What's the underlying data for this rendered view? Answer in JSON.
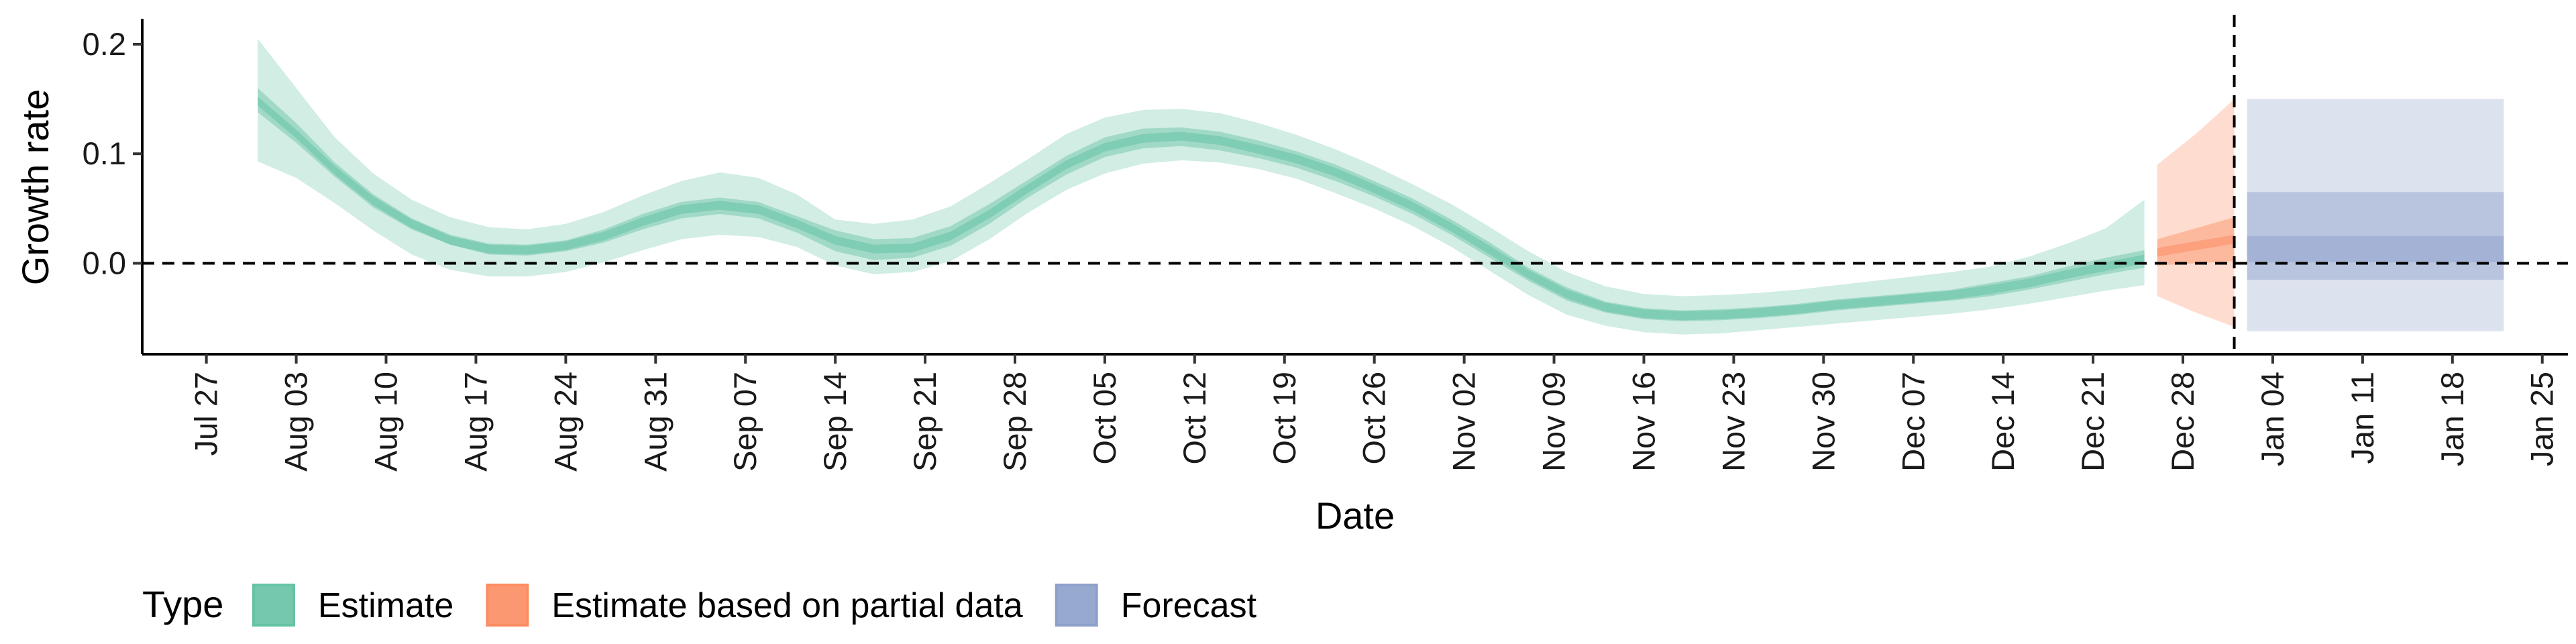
{
  "chart_data": {
    "type": "area",
    "xlabel": "Date",
    "ylabel": "Growth rate",
    "ylim": [
      -0.083,
      0.222
    ],
    "xlim": [
      "2020-07-22",
      "2021-01-27"
    ],
    "y_ticks": [
      0.0,
      0.1,
      0.2
    ],
    "y_tick_labels": [
      "0.0",
      "0.1",
      "0.2"
    ],
    "x_ticks": [
      "2020-07-27",
      "2020-08-03",
      "2020-08-10",
      "2020-08-17",
      "2020-08-24",
      "2020-08-31",
      "2020-09-07",
      "2020-09-14",
      "2020-09-21",
      "2020-09-28",
      "2020-10-05",
      "2020-10-12",
      "2020-10-19",
      "2020-10-26",
      "2020-11-02",
      "2020-11-09",
      "2020-11-16",
      "2020-11-23",
      "2020-11-30",
      "2020-12-07",
      "2020-12-14",
      "2020-12-21",
      "2020-12-28",
      "2021-01-04",
      "2021-01-11",
      "2021-01-18",
      "2021-01-25"
    ],
    "x_tick_labels": [
      "Jul 27",
      "Aug 03",
      "Aug 10",
      "Aug 17",
      "Aug 24",
      "Aug 31",
      "Sep 07",
      "Sep 14",
      "Sep 21",
      "Sep 28",
      "Oct 05",
      "Oct 12",
      "Oct 19",
      "Oct 26",
      "Nov 02",
      "Nov 09",
      "Nov 16",
      "Nov 23",
      "Nov 30",
      "Dec 07",
      "Dec 14",
      "Dec 21",
      "Dec 28",
      "Jan 04",
      "Jan 11",
      "Jan 18",
      "Jan 25"
    ],
    "reference_lines": {
      "horizontal_y": 0.0,
      "vertical_x": "2021-01-01"
    },
    "grid": false,
    "legend_position": "bottom",
    "legend_title": "Type",
    "series": [
      {
        "name": "Estimate",
        "color": "#66c2a5",
        "x": [
          "2020-07-31",
          "2020-08-03",
          "2020-08-06",
          "2020-08-09",
          "2020-08-12",
          "2020-08-15",
          "2020-08-18",
          "2020-08-21",
          "2020-08-24",
          "2020-08-27",
          "2020-08-30",
          "2020-09-02",
          "2020-09-05",
          "2020-09-08",
          "2020-09-11",
          "2020-09-14",
          "2020-09-17",
          "2020-09-20",
          "2020-09-23",
          "2020-09-26",
          "2020-09-29",
          "2020-10-02",
          "2020-10-05",
          "2020-10-08",
          "2020-10-11",
          "2020-10-14",
          "2020-10-17",
          "2020-10-20",
          "2020-10-23",
          "2020-10-26",
          "2020-10-29",
          "2020-11-01",
          "2020-11-04",
          "2020-11-07",
          "2020-11-10",
          "2020-11-13",
          "2020-11-16",
          "2020-11-19",
          "2020-11-22",
          "2020-11-25",
          "2020-11-28",
          "2020-12-01",
          "2020-12-04",
          "2020-12-07",
          "2020-12-10",
          "2020-12-13",
          "2020-12-16",
          "2020-12-19",
          "2020-12-22",
          "2020-12-25"
        ],
        "median": [
          0.148,
          0.118,
          0.085,
          0.057,
          0.036,
          0.021,
          0.013,
          0.012,
          0.016,
          0.025,
          0.038,
          0.049,
          0.053,
          0.049,
          0.036,
          0.021,
          0.013,
          0.014,
          0.025,
          0.045,
          0.068,
          0.09,
          0.106,
          0.114,
          0.116,
          0.112,
          0.104,
          0.095,
          0.083,
          0.068,
          0.052,
          0.033,
          0.012,
          -0.01,
          -0.028,
          -0.04,
          -0.046,
          -0.048,
          -0.047,
          -0.045,
          -0.042,
          -0.038,
          -0.035,
          -0.032,
          -0.029,
          -0.024,
          -0.018,
          -0.01,
          -0.003,
          0.004
        ],
        "lower_50": [
          0.138,
          0.11,
          0.079,
          0.051,
          0.031,
          0.017,
          0.008,
          0.007,
          0.011,
          0.019,
          0.031,
          0.041,
          0.045,
          0.041,
          0.028,
          0.011,
          0.003,
          0.005,
          0.016,
          0.036,
          0.06,
          0.081,
          0.097,
          0.105,
          0.107,
          0.103,
          0.096,
          0.087,
          0.075,
          0.061,
          0.045,
          0.026,
          0.005,
          -0.016,
          -0.034,
          -0.045,
          -0.051,
          -0.053,
          -0.052,
          -0.05,
          -0.047,
          -0.043,
          -0.04,
          -0.037,
          -0.034,
          -0.03,
          -0.024,
          -0.017,
          -0.01,
          -0.004
        ],
        "upper_50": [
          0.16,
          0.128,
          0.092,
          0.063,
          0.041,
          0.026,
          0.018,
          0.017,
          0.021,
          0.031,
          0.045,
          0.056,
          0.06,
          0.056,
          0.043,
          0.03,
          0.022,
          0.023,
          0.034,
          0.054,
          0.076,
          0.098,
          0.115,
          0.123,
          0.124,
          0.12,
          0.112,
          0.102,
          0.09,
          0.075,
          0.059,
          0.04,
          0.019,
          -0.004,
          -0.022,
          -0.035,
          -0.041,
          -0.043,
          -0.042,
          -0.04,
          -0.037,
          -0.033,
          -0.03,
          -0.027,
          -0.024,
          -0.018,
          -0.012,
          -0.003,
          0.005,
          0.012
        ],
        "lower_90": [
          0.093,
          0.078,
          0.055,
          0.03,
          0.008,
          -0.006,
          -0.012,
          -0.012,
          -0.008,
          0.001,
          0.012,
          0.022,
          0.026,
          0.024,
          0.015,
          -0.002,
          -0.01,
          -0.008,
          0.002,
          0.022,
          0.046,
          0.067,
          0.082,
          0.091,
          0.094,
          0.092,
          0.086,
          0.077,
          0.064,
          0.05,
          0.034,
          0.015,
          -0.007,
          -0.029,
          -0.047,
          -0.057,
          -0.063,
          -0.065,
          -0.064,
          -0.061,
          -0.058,
          -0.055,
          -0.052,
          -0.049,
          -0.046,
          -0.042,
          -0.037,
          -0.031,
          -0.025,
          -0.02
        ],
        "upper_90": [
          0.205,
          0.16,
          0.115,
          0.082,
          0.058,
          0.042,
          0.033,
          0.031,
          0.036,
          0.047,
          0.062,
          0.075,
          0.083,
          0.078,
          0.063,
          0.04,
          0.036,
          0.04,
          0.052,
          0.073,
          0.095,
          0.118,
          0.133,
          0.14,
          0.141,
          0.137,
          0.128,
          0.117,
          0.104,
          0.089,
          0.072,
          0.054,
          0.033,
          0.011,
          -0.008,
          -0.021,
          -0.028,
          -0.03,
          -0.029,
          -0.027,
          -0.024,
          -0.02,
          -0.016,
          -0.012,
          -0.008,
          -0.003,
          0.006,
          0.018,
          0.032,
          0.058
        ]
      },
      {
        "name": "Estimate based on partial data",
        "color": "#fc8d62",
        "x": [
          "2020-12-26",
          "2020-12-29",
          "2021-01-01"
        ],
        "median": [
          0.01,
          0.016,
          0.022
        ],
        "lower_50": [
          -0.002,
          0.0,
          0.002
        ],
        "upper_50": [
          0.022,
          0.032,
          0.042
        ],
        "lower_90": [
          -0.03,
          -0.045,
          -0.058
        ],
        "upper_90": [
          0.09,
          0.118,
          0.15
        ]
      },
      {
        "name": "Forecast",
        "color": "#8da0cb",
        "x": [
          "2021-01-02",
          "2021-01-22"
        ],
        "lower_20": [
          0.001,
          0.001
        ],
        "upper_20": [
          0.025,
          0.025
        ],
        "lower_50": [
          -0.015,
          -0.015
        ],
        "upper_50": [
          0.065,
          0.065
        ],
        "lower_90": [
          -0.062,
          -0.062
        ],
        "upper_90": [
          0.15,
          0.15
        ]
      }
    ]
  }
}
